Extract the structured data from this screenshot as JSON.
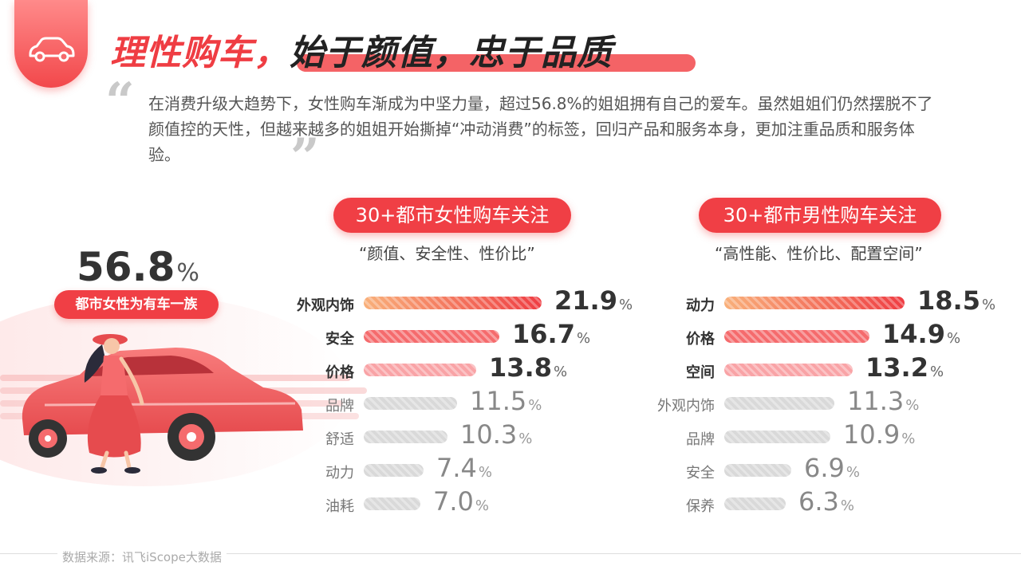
{
  "title": {
    "part1": "理性购车，",
    "part2": "始于颜值，忠于品质"
  },
  "intro": "在消费升级大趋势下，女性购车渐成为中坚力量，超过56.8%的姐姐拥有自己的爱车。虽然姐姐们仍然摆脱不了颜值控的天性，但越来越多的姐姐开始撕掉“冲动消费”的标签，回归产品和服务本身，更加注重品质和服务体验。",
  "quote_open": "“",
  "quote_close": "”",
  "hero": {
    "value": "56.8",
    "unit": "%",
    "label": "都市女性为有车一族"
  },
  "colors": {
    "accent": "#f03f45",
    "bar_top": "#ef3d43",
    "bar_top_start": "#f9b07a",
    "bar_mid": "#f56b6d",
    "bar_light": "#f9a3a6",
    "bar_grey": "#d9d9d9"
  },
  "chart_data": [
    {
      "type": "bar",
      "title": "30+都市女性购车关注",
      "subtitle": "“颜值、安全性、性价比”",
      "unit": "%",
      "categories": [
        "外观内饰",
        "安全",
        "价格",
        "品牌",
        "舒适",
        "动力",
        "油耗"
      ],
      "values": [
        21.9,
        16.7,
        13.8,
        11.5,
        10.3,
        7.4,
        7.0
      ],
      "value_labels": [
        "21.9",
        "16.7",
        "13.8",
        "11.5",
        "10.3",
        "7.4",
        "7.0"
      ],
      "highlighted": 3
    },
    {
      "type": "bar",
      "title": "30+都市男性购车关注",
      "subtitle": "“高性能、性价比、配置空间”",
      "unit": "%",
      "categories": [
        "动力",
        "价格",
        "空间",
        "外观内饰",
        "品牌",
        "安全",
        "保养"
      ],
      "values": [
        18.5,
        14.9,
        13.2,
        11.3,
        10.9,
        6.9,
        6.3
      ],
      "value_labels": [
        "18.5",
        "14.9",
        "13.2",
        "11.3",
        "10.9",
        "6.9",
        "6.3"
      ],
      "highlighted": 3
    }
  ],
  "source": "数据来源：讯飞iScope大数据",
  "icons": {
    "logo": "car-icon"
  }
}
